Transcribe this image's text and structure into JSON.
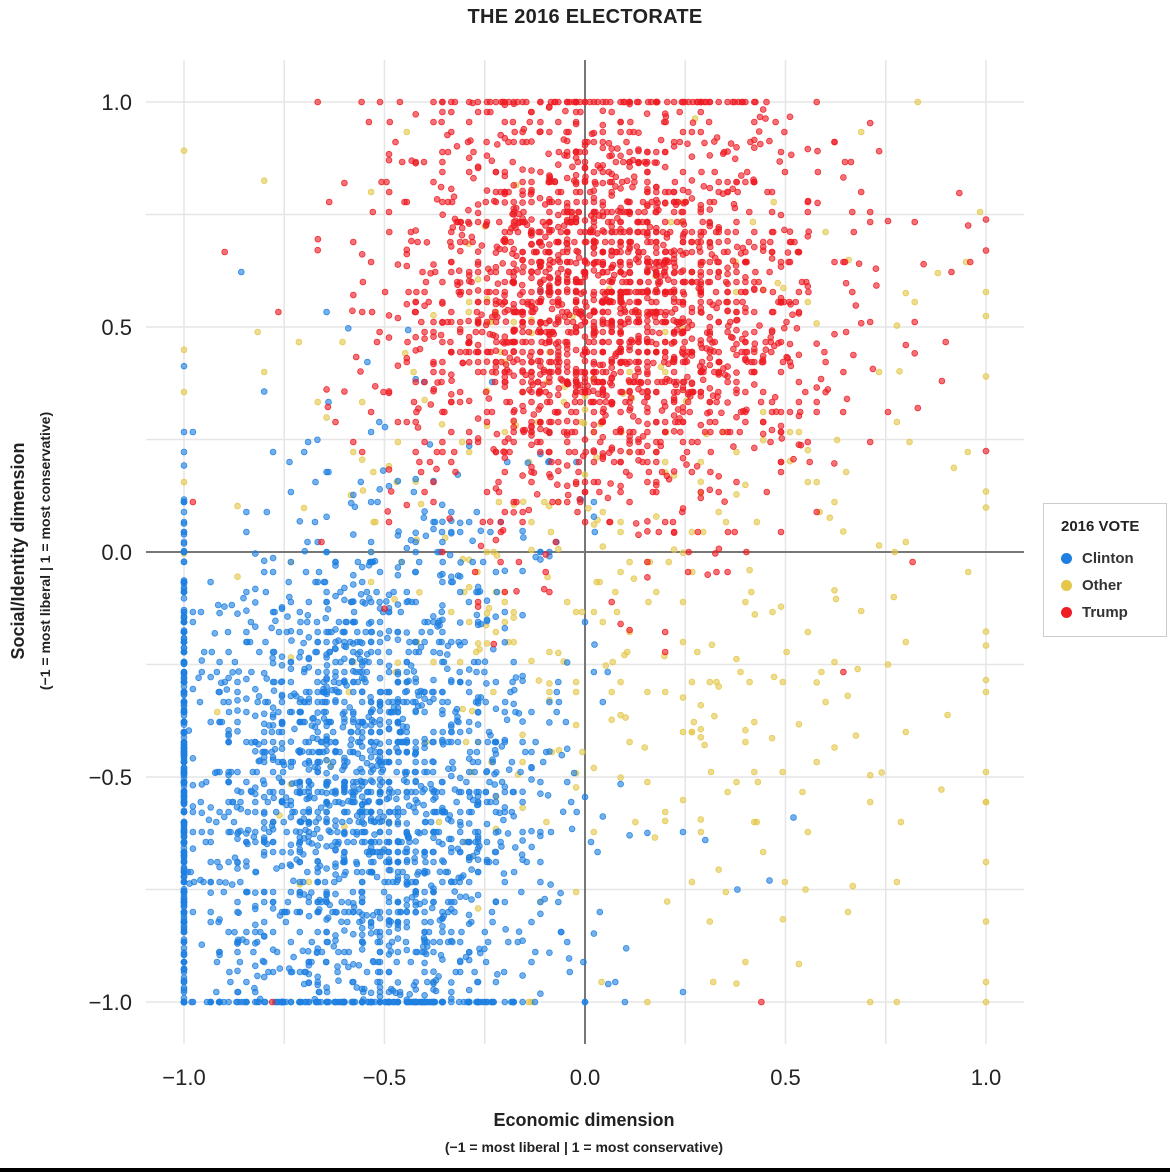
{
  "chart_data": {
    "type": "scatter",
    "title": "THE 2016 ELECTORATE",
    "xlabel": "Economic dimension",
    "xlabel_sub": "(−1 = most liberal | 1 = most conservative)",
    "ylabel": "Social/Identity dimension",
    "ylabel_sub": "(−1 = most liberal | 1 = most conservative)",
    "xlim": [
      -1.1,
      1.1
    ],
    "ylim": [
      -1.1,
      1.1
    ],
    "x_ticks": [
      -1.0,
      -0.5,
      0.0,
      0.5,
      1.0
    ],
    "x_tick_labels": [
      "−1.0",
      "−0.5",
      "0.0",
      "0.5",
      "1.0"
    ],
    "y_ticks": [
      -1.0,
      -0.5,
      0.0,
      0.5,
      1.0
    ],
    "y_tick_labels": [
      "−1.0",
      "−0.5",
      "0.0",
      "0.5",
      "1.0"
    ],
    "grid": true,
    "legend": {
      "title": "2016 VOTE",
      "placement": "right",
      "entries": [
        {
          "label": "Clinton",
          "color": "#1f7fe0"
        },
        {
          "label": "Other",
          "color": "#e3c64a"
        },
        {
          "label": "Trump",
          "color": "#ee1c24"
        }
      ]
    },
    "series": [
      {
        "name": "Clinton",
        "color": "#1f7fe0",
        "distribution": {
          "n": 2600,
          "center": [
            -0.55,
            -0.55
          ],
          "spread": [
            0.23,
            0.33
          ]
        },
        "notable_points": [
          [
            -1.0,
            -1.0
          ],
          [
            0.0,
            -1.0
          ],
          [
            0.52,
            -0.59
          ],
          [
            0.46,
            -0.73
          ],
          [
            0.38,
            -0.75
          ],
          [
            0.3,
            -0.64
          ]
        ]
      },
      {
        "name": "Other",
        "color": "#e3c64a",
        "distribution": {
          "n": 420,
          "center": [
            0.05,
            -0.05
          ],
          "spread": [
            0.45,
            0.45
          ]
        },
        "notable_points": [
          [
            1.0,
            -1.0
          ],
          [
            0.83,
            1.0
          ],
          [
            0.88,
            0.62
          ],
          [
            0.77,
            -0.1
          ],
          [
            0.74,
            -0.49
          ],
          [
            0.68,
            -0.26
          ],
          [
            0.55,
            -0.75
          ]
        ]
      },
      {
        "name": "Trump",
        "color": "#ee1c24",
        "distribution": {
          "n": 2400,
          "center": [
            0.05,
            0.55
          ],
          "spread": [
            0.27,
            0.24
          ]
        },
        "notable_points": [
          [
            1.0,
            0.67
          ],
          [
            0.89,
            0.38
          ],
          [
            0.83,
            0.32
          ],
          [
            0.8,
            0.46
          ],
          [
            0.44,
            -1.0
          ],
          [
            -0.78,
            -1.0
          ]
        ]
      }
    ]
  }
}
